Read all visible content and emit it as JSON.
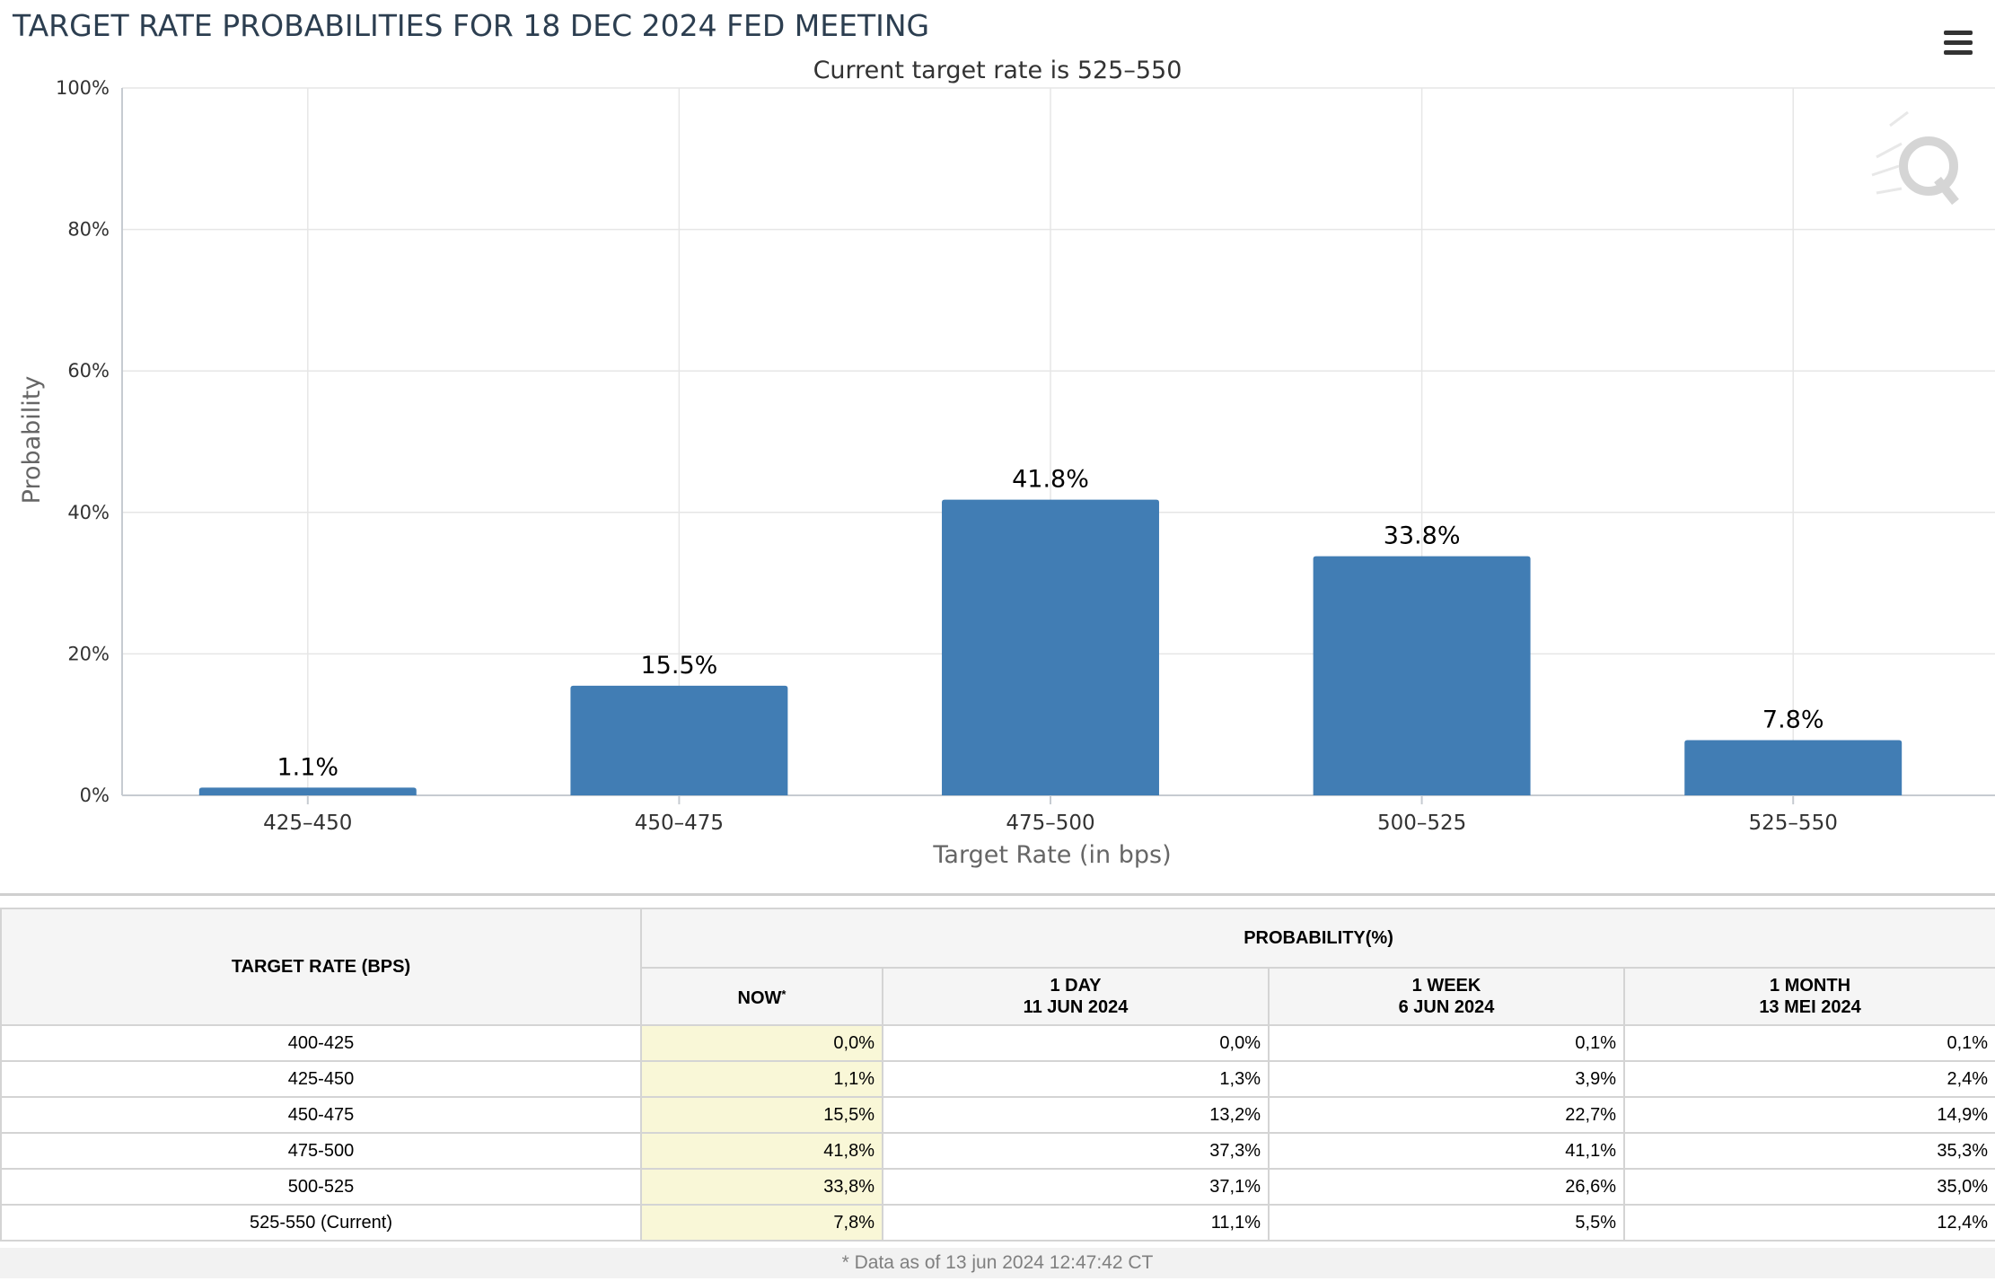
{
  "chart_data": {
    "type": "bar",
    "title": "TARGET RATE PROBABILITIES FOR 18 DEC 2024 FED MEETING",
    "subtitle": "Current target rate is 525–550",
    "xlabel": "Target Rate (in bps)",
    "ylabel": "Probability",
    "categories": [
      "425–450",
      "450–475",
      "475–500",
      "500–525",
      "525–550"
    ],
    "values": [
      1.1,
      15.5,
      41.8,
      33.8,
      7.8
    ],
    "data_labels": [
      "1.1%",
      "15.5%",
      "41.8%",
      "33.8%",
      "7.8%"
    ],
    "ylim": [
      0,
      100
    ],
    "yticks": [
      0,
      20,
      40,
      60,
      80,
      100
    ],
    "ytick_labels": [
      "0%",
      "20%",
      "40%",
      "60%",
      "80%",
      "100%"
    ],
    "bar_color": "#417db4",
    "grid": true,
    "legend": "none"
  },
  "table": {
    "col_target": "TARGET RATE (BPS)",
    "group_header": "PROBABILITY(%)",
    "col_now": "NOW",
    "col_now_mark": "*",
    "col_1day_l1": "1 DAY",
    "col_1day_l2": "11 JUN 2024",
    "col_1week_l1": "1 WEEK",
    "col_1week_l2": "6 JUN 2024",
    "col_1month_l1": "1 MONTH",
    "col_1month_l2": "13 MEI 2024",
    "rows": [
      {
        "rate": "400-425",
        "now": "0,0%",
        "d1": "0,0%",
        "w1": "0,1%",
        "m1": "0,1%"
      },
      {
        "rate": "425-450",
        "now": "1,1%",
        "d1": "1,3%",
        "w1": "3,9%",
        "m1": "2,4%"
      },
      {
        "rate": "450-475",
        "now": "15,5%",
        "d1": "13,2%",
        "w1": "22,7%",
        "m1": "14,9%"
      },
      {
        "rate": "475-500",
        "now": "41,8%",
        "d1": "37,3%",
        "w1": "41,1%",
        "m1": "35,3%"
      },
      {
        "rate": "500-525",
        "now": "33,8%",
        "d1": "37,1%",
        "w1": "26,6%",
        "m1": "35,0%"
      },
      {
        "rate": "525-550 (Current)",
        "now": "7,8%",
        "d1": "11,1%",
        "w1": "5,5%",
        "m1": "12,4%"
      }
    ],
    "footnote": "* Data as of 13 jun 2024 12:47:42 CT"
  },
  "menu": {
    "icon": "hamburger-menu-icon"
  },
  "watermark": {
    "icon": "q-logo-watermark"
  }
}
